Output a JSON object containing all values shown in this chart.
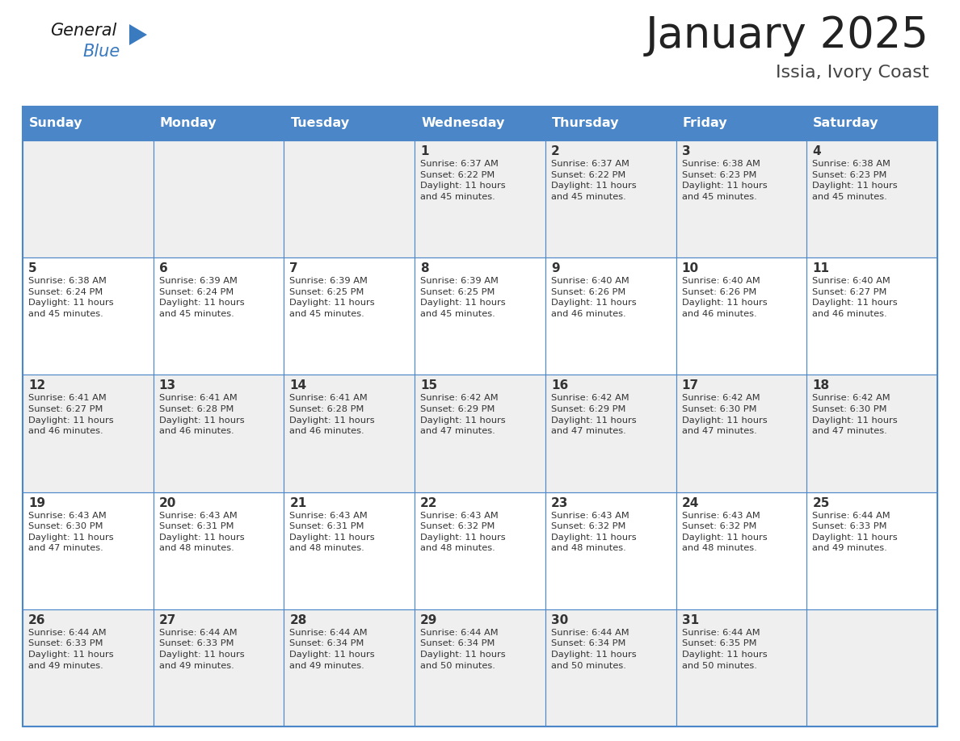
{
  "title": "January 2025",
  "subtitle": "Issia, Ivory Coast",
  "header_color": "#4a86c8",
  "header_text_color": "#ffffff",
  "cell_bg_white": "#ffffff",
  "cell_bg_gray": "#efefef",
  "border_color": "#4a86c8",
  "text_color": "#333333",
  "days_of_week": [
    "Sunday",
    "Monday",
    "Tuesday",
    "Wednesday",
    "Thursday",
    "Friday",
    "Saturday"
  ],
  "weeks": [
    [
      {
        "day": "",
        "info": ""
      },
      {
        "day": "",
        "info": ""
      },
      {
        "day": "",
        "info": ""
      },
      {
        "day": "1",
        "info": "Sunrise: 6:37 AM\nSunset: 6:22 PM\nDaylight: 11 hours\nand 45 minutes."
      },
      {
        "day": "2",
        "info": "Sunrise: 6:37 AM\nSunset: 6:22 PM\nDaylight: 11 hours\nand 45 minutes."
      },
      {
        "day": "3",
        "info": "Sunrise: 6:38 AM\nSunset: 6:23 PM\nDaylight: 11 hours\nand 45 minutes."
      },
      {
        "day": "4",
        "info": "Sunrise: 6:38 AM\nSunset: 6:23 PM\nDaylight: 11 hours\nand 45 minutes."
      }
    ],
    [
      {
        "day": "5",
        "info": "Sunrise: 6:38 AM\nSunset: 6:24 PM\nDaylight: 11 hours\nand 45 minutes."
      },
      {
        "day": "6",
        "info": "Sunrise: 6:39 AM\nSunset: 6:24 PM\nDaylight: 11 hours\nand 45 minutes."
      },
      {
        "day": "7",
        "info": "Sunrise: 6:39 AM\nSunset: 6:25 PM\nDaylight: 11 hours\nand 45 minutes."
      },
      {
        "day": "8",
        "info": "Sunrise: 6:39 AM\nSunset: 6:25 PM\nDaylight: 11 hours\nand 45 minutes."
      },
      {
        "day": "9",
        "info": "Sunrise: 6:40 AM\nSunset: 6:26 PM\nDaylight: 11 hours\nand 46 minutes."
      },
      {
        "day": "10",
        "info": "Sunrise: 6:40 AM\nSunset: 6:26 PM\nDaylight: 11 hours\nand 46 minutes."
      },
      {
        "day": "11",
        "info": "Sunrise: 6:40 AM\nSunset: 6:27 PM\nDaylight: 11 hours\nand 46 minutes."
      }
    ],
    [
      {
        "day": "12",
        "info": "Sunrise: 6:41 AM\nSunset: 6:27 PM\nDaylight: 11 hours\nand 46 minutes."
      },
      {
        "day": "13",
        "info": "Sunrise: 6:41 AM\nSunset: 6:28 PM\nDaylight: 11 hours\nand 46 minutes."
      },
      {
        "day": "14",
        "info": "Sunrise: 6:41 AM\nSunset: 6:28 PM\nDaylight: 11 hours\nand 46 minutes."
      },
      {
        "day": "15",
        "info": "Sunrise: 6:42 AM\nSunset: 6:29 PM\nDaylight: 11 hours\nand 47 minutes."
      },
      {
        "day": "16",
        "info": "Sunrise: 6:42 AM\nSunset: 6:29 PM\nDaylight: 11 hours\nand 47 minutes."
      },
      {
        "day": "17",
        "info": "Sunrise: 6:42 AM\nSunset: 6:30 PM\nDaylight: 11 hours\nand 47 minutes."
      },
      {
        "day": "18",
        "info": "Sunrise: 6:42 AM\nSunset: 6:30 PM\nDaylight: 11 hours\nand 47 minutes."
      }
    ],
    [
      {
        "day": "19",
        "info": "Sunrise: 6:43 AM\nSunset: 6:30 PM\nDaylight: 11 hours\nand 47 minutes."
      },
      {
        "day": "20",
        "info": "Sunrise: 6:43 AM\nSunset: 6:31 PM\nDaylight: 11 hours\nand 48 minutes."
      },
      {
        "day": "21",
        "info": "Sunrise: 6:43 AM\nSunset: 6:31 PM\nDaylight: 11 hours\nand 48 minutes."
      },
      {
        "day": "22",
        "info": "Sunrise: 6:43 AM\nSunset: 6:32 PM\nDaylight: 11 hours\nand 48 minutes."
      },
      {
        "day": "23",
        "info": "Sunrise: 6:43 AM\nSunset: 6:32 PM\nDaylight: 11 hours\nand 48 minutes."
      },
      {
        "day": "24",
        "info": "Sunrise: 6:43 AM\nSunset: 6:32 PM\nDaylight: 11 hours\nand 48 minutes."
      },
      {
        "day": "25",
        "info": "Sunrise: 6:44 AM\nSunset: 6:33 PM\nDaylight: 11 hours\nand 49 minutes."
      }
    ],
    [
      {
        "day": "26",
        "info": "Sunrise: 6:44 AM\nSunset: 6:33 PM\nDaylight: 11 hours\nand 49 minutes."
      },
      {
        "day": "27",
        "info": "Sunrise: 6:44 AM\nSunset: 6:33 PM\nDaylight: 11 hours\nand 49 minutes."
      },
      {
        "day": "28",
        "info": "Sunrise: 6:44 AM\nSunset: 6:34 PM\nDaylight: 11 hours\nand 49 minutes."
      },
      {
        "day": "29",
        "info": "Sunrise: 6:44 AM\nSunset: 6:34 PM\nDaylight: 11 hours\nand 50 minutes."
      },
      {
        "day": "30",
        "info": "Sunrise: 6:44 AM\nSunset: 6:34 PM\nDaylight: 11 hours\nand 50 minutes."
      },
      {
        "day": "31",
        "info": "Sunrise: 6:44 AM\nSunset: 6:35 PM\nDaylight: 11 hours\nand 50 minutes."
      },
      {
        "day": "",
        "info": ""
      }
    ]
  ],
  "logo_general_color": "#1a1a1a",
  "logo_blue_color": "#3a7abf",
  "logo_triangle_color": "#3a7abf",
  "fig_width": 11.88,
  "fig_height": 9.18,
  "dpi": 100
}
